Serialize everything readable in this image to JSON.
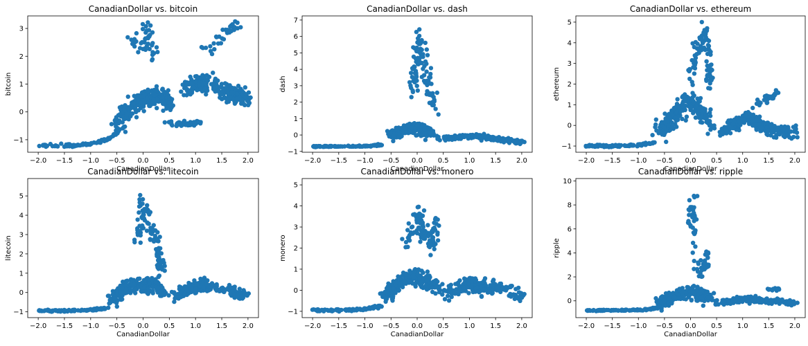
{
  "chart_data": [
    {
      "type": "scatter",
      "title": "CanadianDollar vs. bitcoin",
      "xlabel": "CanadianDollar",
      "ylabel": "bitcoin",
      "xlim": [
        -2.2,
        2.2
      ],
      "ylim": [
        -1.45,
        3.45
      ],
      "xticks": [
        -2.0,
        -1.5,
        -1.0,
        -0.5,
        0.0,
        0.5,
        1.0,
        1.5,
        2.0
      ],
      "yticks": [
        -1,
        0,
        1,
        2,
        3
      ],
      "color": "#1f77b4",
      "legend": "none",
      "grid": false,
      "clusters": [
        {
          "anchors": [
            [
              -2.0,
              -1.2
            ],
            [
              -1.6,
              -1.2
            ],
            [
              -1.3,
              -1.2
            ],
            [
              -1.0,
              -1.15
            ],
            [
              -0.8,
              -1.05
            ],
            [
              -0.6,
              -0.9
            ],
            [
              -0.45,
              -0.65
            ]
          ],
          "spread": [
            0.04,
            0.05
          ],
          "n": 90
        },
        {
          "anchors": [
            [
              -0.5,
              -0.5
            ],
            [
              -0.3,
              0.0
            ],
            [
              -0.1,
              0.3
            ],
            [
              0.1,
              0.5
            ],
            [
              0.3,
              0.6
            ],
            [
              0.5,
              0.3
            ]
          ],
          "spread": [
            0.12,
            0.35
          ],
          "n": 260
        },
        {
          "anchors": [
            [
              -0.2,
              2.6
            ],
            [
              0.0,
              2.2
            ],
            [
              0.1,
              3.0
            ],
            [
              0.2,
              1.9
            ]
          ],
          "spread": [
            0.1,
            0.3
          ],
          "n": 45
        },
        {
          "anchors": [
            [
              0.8,
              0.8
            ],
            [
              1.0,
              1.0
            ],
            [
              1.2,
              1.1
            ],
            [
              1.4,
              0.9
            ],
            [
              1.6,
              0.7
            ],
            [
              1.8,
              0.6
            ],
            [
              2.0,
              0.5
            ]
          ],
          "spread": [
            0.1,
            0.3
          ],
          "n": 260
        },
        {
          "anchors": [
            [
              0.5,
              -0.4
            ],
            [
              0.8,
              -0.45
            ],
            [
              1.05,
              -0.4
            ]
          ],
          "spread": [
            0.1,
            0.08
          ],
          "n": 60
        },
        {
          "anchors": [
            [
              1.1,
              2.3
            ],
            [
              1.3,
              2.2
            ],
            [
              1.6,
              2.9
            ],
            [
              1.8,
              3.1
            ]
          ],
          "spread": [
            0.08,
            0.2
          ],
          "n": 35
        }
      ]
    },
    {
      "type": "scatter",
      "title": "CanadianDollar vs. dash",
      "xlabel": "CanadianDollar",
      "ylabel": "dash",
      "xlim": [
        -2.2,
        2.2
      ],
      "ylim": [
        -1.05,
        7.25
      ],
      "xticks": [
        -2.0,
        -1.5,
        -1.0,
        -0.5,
        0.0,
        0.5,
        1.0,
        1.5,
        2.0
      ],
      "yticks": [
        -1,
        0,
        1,
        2,
        3,
        4,
        5,
        6,
        7
      ],
      "color": "#1f77b4",
      "legend": "none",
      "grid": false,
      "clusters": [
        {
          "anchors": [
            [
              -2.0,
              -0.7
            ],
            [
              -1.5,
              -0.7
            ],
            [
              -1.0,
              -0.68
            ],
            [
              -0.7,
              -0.6
            ]
          ],
          "spread": [
            0.05,
            0.04
          ],
          "n": 100
        },
        {
          "anchors": [
            [
              -0.5,
              0.0
            ],
            [
              -0.3,
              0.2
            ],
            [
              -0.1,
              0.5
            ],
            [
              0.1,
              0.3
            ],
            [
              0.3,
              0.0
            ]
          ],
          "spread": [
            0.12,
            0.3
          ],
          "n": 220
        },
        {
          "anchors": [
            [
              -0.1,
              2.5
            ],
            [
              0.0,
              4.2
            ],
            [
              0.05,
              6.0
            ],
            [
              0.2,
              3.2
            ],
            [
              0.35,
              1.8
            ]
          ],
          "spread": [
            0.08,
            0.7
          ],
          "n": 110
        },
        {
          "anchors": [
            [
              0.5,
              -0.2
            ],
            [
              0.8,
              -0.1
            ],
            [
              1.1,
              -0.05
            ],
            [
              1.4,
              -0.2
            ],
            [
              1.7,
              -0.3
            ],
            [
              2.0,
              -0.45
            ]
          ],
          "spread": [
            0.12,
            0.12
          ],
          "n": 240
        }
      ]
    },
    {
      "type": "scatter",
      "title": "CanadianDollar vs. ethereum",
      "xlabel": "CanadianDollar",
      "ylabel": "ethereum",
      "xlim": [
        -2.2,
        2.2
      ],
      "ylim": [
        -1.3,
        5.3
      ],
      "xticks": [
        -2.0,
        -1.5,
        -1.0,
        -0.5,
        0.0,
        0.5,
        1.0,
        1.5,
        2.0
      ],
      "yticks": [
        -1,
        0,
        1,
        2,
        3,
        4,
        5
      ],
      "color": "#1f77b4",
      "legend": "none",
      "grid": false,
      "clusters": [
        {
          "anchors": [
            [
              -2.0,
              -1.0
            ],
            [
              -1.5,
              -1.0
            ],
            [
              -1.0,
              -0.95
            ],
            [
              -0.7,
              -0.85
            ]
          ],
          "spread": [
            0.05,
            0.05
          ],
          "n": 100
        },
        {
          "anchors": [
            [
              -0.6,
              -0.3
            ],
            [
              -0.4,
              0.2
            ],
            [
              -0.2,
              0.8
            ],
            [
              0.0,
              1.2
            ],
            [
              0.2,
              0.6
            ],
            [
              0.4,
              0.0
            ]
          ],
          "spread": [
            0.12,
            0.4
          ],
          "n": 230
        },
        {
          "anchors": [
            [
              0.0,
              2.2
            ],
            [
              0.1,
              3.6
            ],
            [
              0.3,
              4.6
            ],
            [
              0.35,
              2.8
            ],
            [
              0.4,
              1.8
            ]
          ],
          "spread": [
            0.07,
            0.5
          ],
          "n": 90
        },
        {
          "anchors": [
            [
              0.6,
              -0.3
            ],
            [
              0.9,
              0.1
            ],
            [
              1.1,
              0.5
            ],
            [
              1.3,
              0.0
            ],
            [
              1.6,
              -0.2
            ],
            [
              2.0,
              -0.35
            ]
          ],
          "spread": [
            0.12,
            0.3
          ],
          "n": 230
        },
        {
          "anchors": [
            [
              1.3,
              1.0
            ],
            [
              1.5,
              1.3
            ],
            [
              1.7,
              1.6
            ]
          ],
          "spread": [
            0.08,
            0.15
          ],
          "n": 30
        }
      ]
    },
    {
      "type": "scatter",
      "title": "CanadianDollar vs. litecoin",
      "xlabel": "CanadianDollar",
      "ylabel": "litecoin",
      "xlim": [
        -2.2,
        2.2
      ],
      "ylim": [
        -1.3,
        5.9
      ],
      "xticks": [
        -2.0,
        -1.5,
        -1.0,
        -0.5,
        0.0,
        0.5,
        1.0,
        1.5,
        2.0
      ],
      "yticks": [
        -1,
        0,
        1,
        2,
        3,
        4,
        5
      ],
      "color": "#1f77b4",
      "legend": "none",
      "grid": false,
      "clusters": [
        {
          "anchors": [
            [
              -2.0,
              -0.95
            ],
            [
              -1.5,
              -0.95
            ],
            [
              -1.0,
              -0.9
            ],
            [
              -0.7,
              -0.8
            ]
          ],
          "spread": [
            0.05,
            0.05
          ],
          "n": 100
        },
        {
          "anchors": [
            [
              -0.6,
              -0.4
            ],
            [
              -0.4,
              0.1
            ],
            [
              -0.2,
              0.4
            ],
            [
              0.0,
              0.3
            ],
            [
              0.2,
              0.5
            ],
            [
              0.4,
              0.0
            ]
          ],
          "spread": [
            0.12,
            0.35
          ],
          "n": 240
        },
        {
          "anchors": [
            [
              -0.1,
              2.5
            ],
            [
              0.0,
              4.5
            ],
            [
              0.1,
              3.5
            ],
            [
              0.3,
              2.2
            ],
            [
              0.35,
              1.3
            ]
          ],
          "spread": [
            0.08,
            0.6
          ],
          "n": 110
        },
        {
          "anchors": [
            [
              0.6,
              -0.2
            ],
            [
              0.9,
              0.2
            ],
            [
              1.1,
              0.4
            ],
            [
              1.3,
              0.2
            ],
            [
              1.6,
              0.1
            ],
            [
              2.0,
              -0.2
            ]
          ],
          "spread": [
            0.12,
            0.3
          ],
          "n": 240
        }
      ]
    },
    {
      "type": "scatter",
      "title": "CanadianDollar vs. monero",
      "xlabel": "CanadianDollar",
      "ylabel": "monero",
      "xlim": [
        -2.2,
        2.2
      ],
      "ylim": [
        -1.3,
        5.3
      ],
      "xticks": [
        -2.0,
        -1.5,
        -1.0,
        -0.5,
        0.0,
        0.5,
        1.0,
        1.5,
        2.0
      ],
      "yticks": [
        -1,
        0,
        1,
        2,
        3,
        4,
        5
      ],
      "color": "#1f77b4",
      "legend": "none",
      "grid": false,
      "clusters": [
        {
          "anchors": [
            [
              -2.0,
              -0.95
            ],
            [
              -1.5,
              -0.95
            ],
            [
              -1.0,
              -0.9
            ],
            [
              -0.7,
              -0.75
            ]
          ],
          "spread": [
            0.05,
            0.05
          ],
          "n": 100
        },
        {
          "anchors": [
            [
              -0.6,
              -0.3
            ],
            [
              -0.4,
              0.3
            ],
            [
              -0.2,
              0.6
            ],
            [
              0.0,
              0.7
            ],
            [
              0.2,
              0.4
            ],
            [
              0.4,
              0.0
            ]
          ],
          "spread": [
            0.12,
            0.35
          ],
          "n": 230
        },
        {
          "anchors": [
            [
              -0.2,
              2.4
            ],
            [
              0.0,
              3.6
            ],
            [
              0.1,
              2.8
            ],
            [
              0.3,
              2.0
            ],
            [
              0.35,
              3.2
            ]
          ],
          "spread": [
            0.08,
            0.6
          ],
          "n": 110
        },
        {
          "anchors": [
            [
              0.6,
              -0.1
            ],
            [
              0.9,
              0.2
            ],
            [
              1.1,
              0.3
            ],
            [
              1.3,
              0.1
            ],
            [
              1.6,
              0.2
            ],
            [
              2.0,
              -0.3
            ]
          ],
          "spread": [
            0.12,
            0.3
          ],
          "n": 240
        }
      ]
    },
    {
      "type": "scatter",
      "title": "CanadianDollar vs. ripple",
      "xlabel": "CanadianDollar",
      "ylabel": "ripple",
      "xlim": [
        -2.2,
        2.2
      ],
      "ylim": [
        -1.4,
        10.2
      ],
      "xticks": [
        -2.0,
        -1.5,
        -1.0,
        -0.5,
        0.0,
        0.5,
        1.0,
        1.5,
        2.0
      ],
      "yticks": [
        0,
        2,
        4,
        6,
        8,
        10
      ],
      "color": "#1f77b4",
      "legend": "none",
      "grid": false,
      "clusters": [
        {
          "anchors": [
            [
              -2.0,
              -0.8
            ],
            [
              -1.5,
              -0.8
            ],
            [
              -1.0,
              -0.78
            ],
            [
              -0.6,
              -0.6
            ]
          ],
          "spread": [
            0.05,
            0.05
          ],
          "n": 110
        },
        {
          "anchors": [
            [
              -0.6,
              -0.2
            ],
            [
              -0.4,
              0.2
            ],
            [
              -0.2,
              0.6
            ],
            [
              0.0,
              0.8
            ],
            [
              0.2,
              0.5
            ],
            [
              0.4,
              0.1
            ]
          ],
          "spread": [
            0.12,
            0.5
          ],
          "n": 230
        },
        {
          "anchors": [
            [
              0.0,
              5.5
            ],
            [
              0.05,
              8.7
            ],
            [
              0.1,
              3.0
            ],
            [
              0.3,
              2.5
            ],
            [
              0.35,
              4.0
            ]
          ],
          "spread": [
            0.07,
            0.7
          ],
          "n": 70
        },
        {
          "anchors": [
            [
              0.6,
              -0.1
            ],
            [
              0.9,
              0.1
            ],
            [
              1.1,
              0.2
            ],
            [
              1.3,
              0.0
            ],
            [
              1.6,
              0.0
            ],
            [
              2.0,
              -0.2
            ]
          ],
          "spread": [
            0.12,
            0.2
          ],
          "n": 240
        },
        {
          "anchors": [
            [
              1.5,
              0.9
            ],
            [
              1.7,
              1.0
            ]
          ],
          "spread": [
            0.06,
            0.15
          ],
          "n": 15
        }
      ]
    }
  ]
}
